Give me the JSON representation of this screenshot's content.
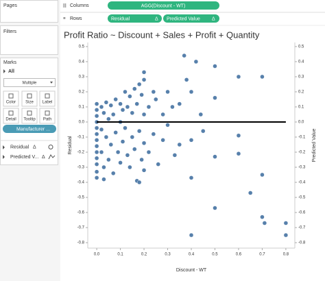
{
  "shelves": {
    "pages": "Pages",
    "filters": "Filters",
    "columns_label": "Columns",
    "columns_pill": "AGG(Discount - WT)",
    "rows_label": "Rows",
    "rows_pills": [
      "Residual",
      "Predicted Value"
    ],
    "delta": "Δ"
  },
  "marks": {
    "title": "Marks",
    "all": "All",
    "mark_type": "Multiple",
    "buttons": [
      "Color",
      "Size",
      "Label",
      "Detail",
      "Tooltip",
      "Path"
    ],
    "detail_pill": "Manufacturer ...",
    "measures": [
      "Residual",
      "Predicted V..."
    ]
  },
  "chart": {
    "type": "scatter",
    "title": "Profit Ratio ~ Discount + Sales + Profit + Quantity",
    "x_label": "Discount - WT",
    "y_label": "Residual",
    "y2_label": "Predicted Value",
    "xlim": [
      -0.038,
      0.838
    ],
    "ylim": [
      -0.836,
      0.527
    ],
    "xticks": [
      {
        "value": 0,
        "label": "0.0"
      },
      0.1,
      0.2,
      0.3,
      0.4,
      0.5,
      0.6,
      0.7,
      0.8
    ],
    "yticks": [
      0.5,
      0.4,
      0.3,
      0.2,
      0.1,
      {
        "value": 0,
        "label": "0.0"
      },
      -0.1,
      -0.2,
      -0.3,
      -0.4,
      -0.5,
      -0.6,
      -0.7,
      -0.8
    ],
    "color": "#4e79a7",
    "x": [
      0,
      0,
      0,
      0,
      0,
      0,
      0,
      0,
      0,
      0,
      0,
      0,
      0,
      0.02,
      0.02,
      0.02,
      0.03,
      0.03,
      0.04,
      0.04,
      0.05,
      0.05,
      0.06,
      0.06,
      0.07,
      0.07,
      0.08,
      0.08,
      0.09,
      0.1,
      0.1,
      0.1,
      0.11,
      0.11,
      0.12,
      0.12,
      0.13,
      0.13,
      0.14,
      0.14,
      0.15,
      0.15,
      0.16,
      0.16,
      0.17,
      0.17,
      0.18,
      0.18,
      0.19,
      0.19,
      0.2,
      0.2,
      0.2,
      0.2,
      0.2,
      0.22,
      0.22,
      0.24,
      0.24,
      0.25,
      0.26,
      0.28,
      0.28,
      0.3,
      0.3,
      0.32,
      0.33,
      0.35,
      0.35,
      0.37,
      0.38,
      0.4,
      0.4,
      0.4,
      0.4,
      0.42,
      0.44,
      0.45,
      0.5,
      0.5,
      0.5,
      0.5,
      0.6,
      0.6,
      0.6,
      0.65,
      0.7,
      0.7,
      0.7,
      0.71,
      0.8,
      0.8,
      0.18,
      0.03
    ],
    "y": [
      0.12,
      0.08,
      0.04,
      0.0,
      -0.04,
      -0.08,
      -0.12,
      -0.16,
      -0.2,
      -0.24,
      -0.28,
      -0.33,
      -0.37,
      0.1,
      -0.05,
      -0.2,
      0.06,
      -0.3,
      0.13,
      -0.1,
      0.02,
      -0.25,
      0.11,
      -0.15,
      0.05,
      -0.34,
      0.15,
      -0.07,
      -0.2,
      0.12,
      0.0,
      -0.27,
      0.08,
      -0.13,
      0.2,
      -0.04,
      0.1,
      -0.22,
      0.17,
      -0.3,
      0.06,
      -0.1,
      0.22,
      -0.18,
      -0.39,
      0.12,
      0.25,
      -0.06,
      0.18,
      -0.25,
      0.33,
      0.28,
      0.05,
      -0.14,
      -0.32,
      0.1,
      -0.2,
      0.2,
      -0.08,
      0.15,
      -0.28,
      0.05,
      -0.12,
      0.2,
      -0.02,
      0.1,
      -0.22,
      0.12,
      -0.15,
      0.44,
      0.28,
      0.2,
      -0.12,
      -0.37,
      -0.75,
      0.4,
      0.05,
      -0.06,
      0.37,
      0.16,
      -0.23,
      -0.57,
      0.3,
      -0.09,
      -0.21,
      -0.47,
      0.3,
      -0.35,
      -0.63,
      -0.67,
      -0.67,
      -0.75,
      -0.4,
      -0.38
    ],
    "trend": {
      "x": [
        0,
        0.8
      ],
      "y": [
        0,
        0
      ],
      "color": "#000000"
    }
  }
}
